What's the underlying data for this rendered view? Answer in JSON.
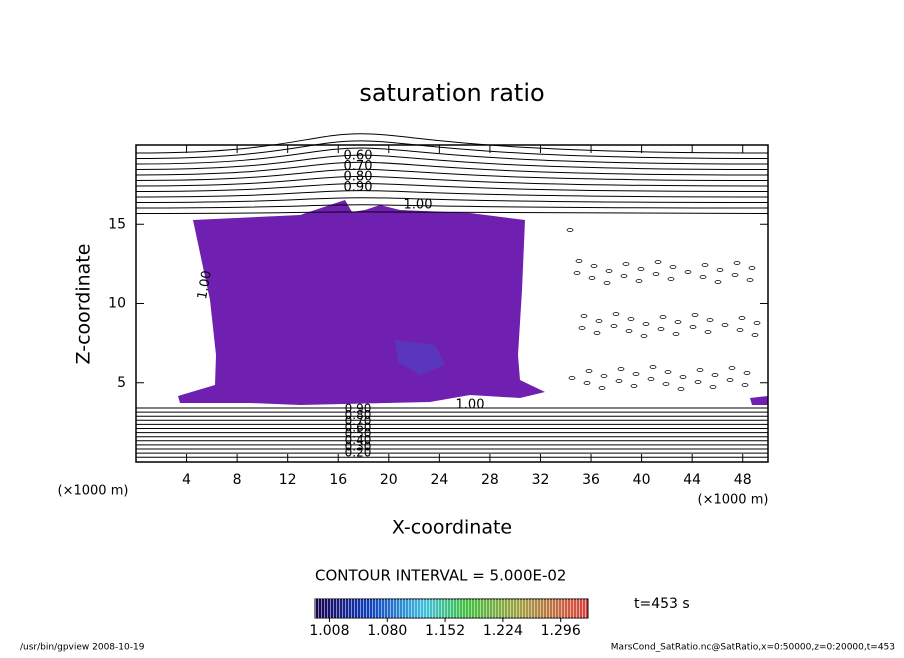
{
  "chart_data": {
    "type": "contour",
    "title": "saturation ratio",
    "x_label": "X-coordinate",
    "y_label": "Z-coordinate",
    "x_unit": "(×1000 m)",
    "y_unit": "(×1000 m)",
    "xlim": [
      0,
      50
    ],
    "ylim": [
      0,
      20
    ],
    "xticks": [
      4,
      8,
      12,
      16,
      20,
      24,
      28,
      32,
      36,
      40,
      44,
      48
    ],
    "yticks": [
      5,
      10,
      15
    ],
    "contour_labels_top": [
      "0.60",
      "0.70",
      "0.80",
      "0.90"
    ],
    "contour_labels_one": [
      "1.00",
      "1.00",
      "1.00"
    ],
    "contour_labels_bottom": [
      "0.90",
      "0.80",
      "0.70",
      "0.60",
      "0.50",
      "0.40",
      "0.30",
      "0.20"
    ],
    "contour_interval": "CONTOUR INTERVAL = 5.000E-02",
    "colorbar": {
      "clim": [
        0.99,
        1.33
      ],
      "ticks": [
        1.008,
        {
          "value": 1.08,
          "label": "1.080"
        },
        1.152,
        1.224,
        1.296
      ]
    },
    "time_label": "t=453 s",
    "footer_left": "/usr/bin/gpview  2008-10-19",
    "footer_right": "MarsCond_SatRatio.nc@SatRatio,x=0:50000,z=0:20000,t=453"
  }
}
